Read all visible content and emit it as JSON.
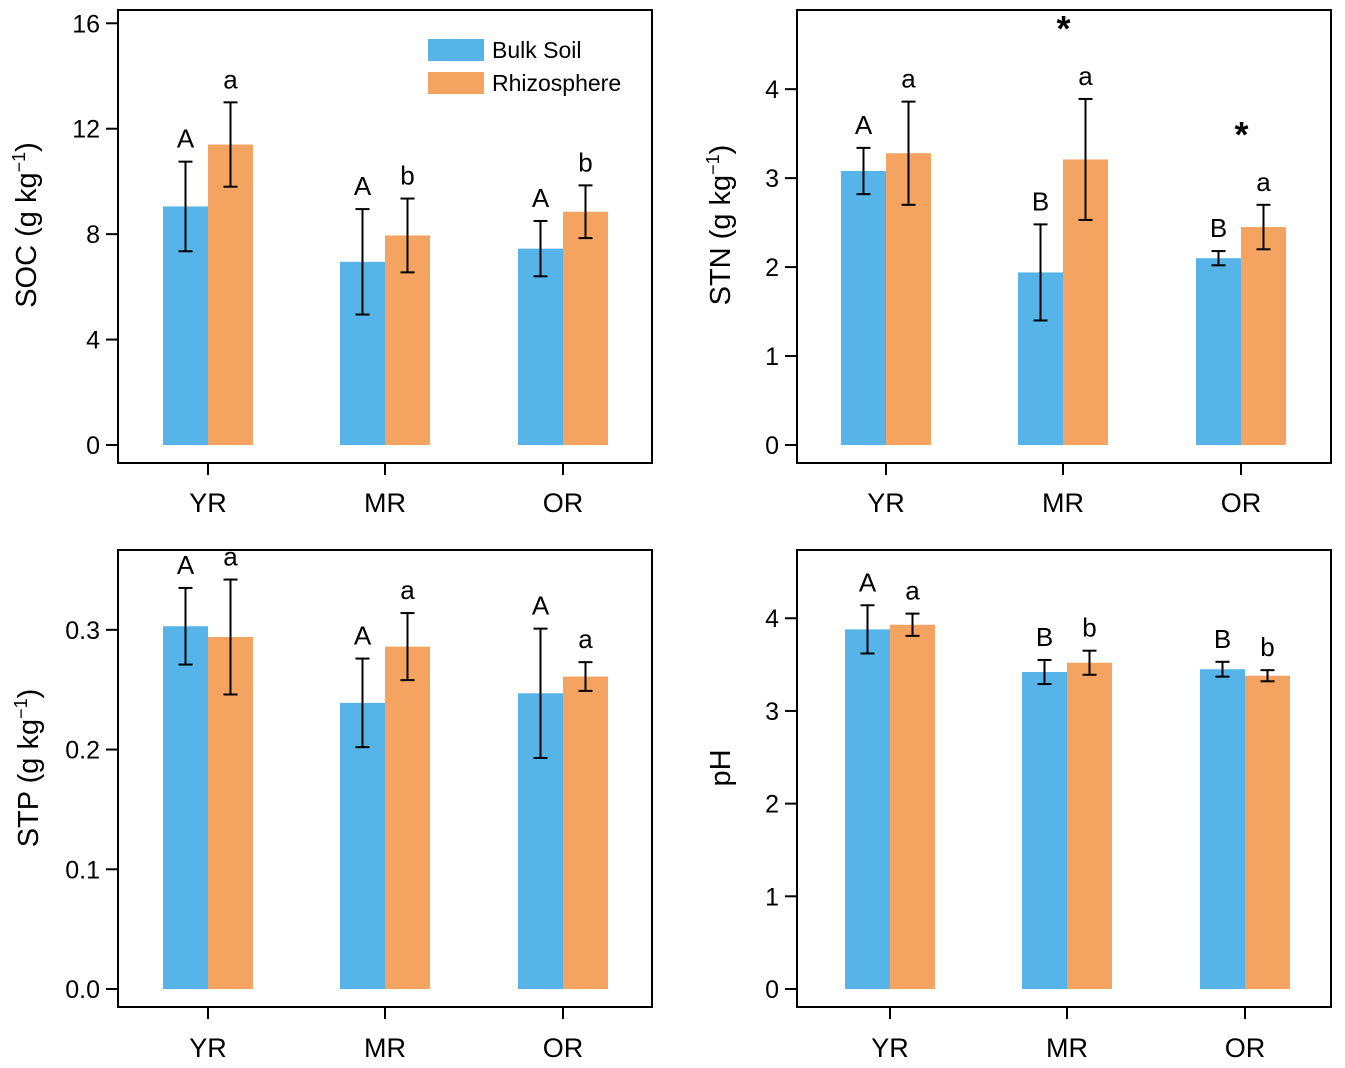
{
  "colors": {
    "bulk": "#56B4E9",
    "rhizo": "#F4A460",
    "axis": "#000000"
  },
  "legend": {
    "items": [
      "Bulk Soil",
      "Rhizosphere"
    ],
    "placement": "top-right of first panel"
  },
  "chart_data": [
    {
      "type": "bar",
      "id": "soc",
      "ylabel": "SOC (g kg",
      "ylabel_sup": "−1",
      "ylabel_close": ")",
      "categories": [
        "YR",
        "MR",
        "OR"
      ],
      "ylim": [
        0,
        16.2
      ],
      "yticks": [
        0,
        4,
        8,
        12,
        16
      ],
      "ytick_labels": [
        "0",
        "4",
        "8",
        "12",
        "16"
      ],
      "series": [
        {
          "name": "Bulk Soil",
          "values": [
            9.05,
            6.95,
            7.45
          ],
          "errors": [
            1.7,
            2.0,
            1.05
          ],
          "sig": [
            "A",
            "A",
            "A"
          ]
        },
        {
          "name": "Rhizosphere",
          "values": [
            11.4,
            7.95,
            8.85
          ],
          "errors": [
            1.6,
            1.4,
            1.0
          ],
          "sig": [
            "a",
            "b",
            "b"
          ]
        }
      ],
      "stars": []
    },
    {
      "type": "bar",
      "id": "stn",
      "ylabel": "STN (g kg",
      "ylabel_sup": "−1",
      "ylabel_close": ")",
      "categories": [
        "YR",
        "MR",
        "OR"
      ],
      "ylim": [
        0,
        4.8
      ],
      "yticks": [
        0,
        1,
        2,
        3,
        4
      ],
      "ytick_labels": [
        "0",
        "1",
        "2",
        "3",
        "4"
      ],
      "series": [
        {
          "name": "Bulk Soil",
          "values": [
            3.08,
            1.94,
            2.1
          ],
          "errors": [
            0.26,
            0.54,
            0.08
          ],
          "sig": [
            "A",
            "B",
            "B"
          ]
        },
        {
          "name": "Rhizosphere",
          "values": [
            3.28,
            3.21,
            2.45
          ],
          "errors": [
            0.58,
            0.68,
            0.25
          ],
          "sig": [
            "a",
            "a",
            "a"
          ]
        }
      ],
      "stars": [
        "",
        "*",
        "*"
      ]
    },
    {
      "type": "bar",
      "id": "stp",
      "ylabel": "STP (g kg",
      "ylabel_sup": "−1",
      "ylabel_close": ")",
      "categories": [
        "YR",
        "MR",
        "OR"
      ],
      "ylim": [
        0,
        0.36
      ],
      "yticks": [
        0,
        0.1,
        0.2,
        0.3
      ],
      "ytick_labels": [
        "0.0",
        "0.1",
        "0.2",
        "0.3"
      ],
      "series": [
        {
          "name": "Bulk Soil",
          "values": [
            0.303,
            0.239,
            0.247
          ],
          "errors": [
            0.032,
            0.037,
            0.054
          ],
          "sig": [
            "A",
            "A",
            "A"
          ]
        },
        {
          "name": "Rhizosphere",
          "values": [
            0.294,
            0.286,
            0.261
          ],
          "errors": [
            0.048,
            0.028,
            0.012
          ],
          "sig": [
            "a",
            "a",
            "a"
          ]
        }
      ],
      "stars": []
    },
    {
      "type": "bar",
      "id": "ph",
      "ylabel": "pH",
      "ylabel_sup": "",
      "ylabel_close": "",
      "categories": [
        "YR",
        "MR",
        "OR"
      ],
      "ylim": [
        0,
        4.65
      ],
      "yticks": [
        0,
        1,
        2,
        3,
        4
      ],
      "ytick_labels": [
        "0",
        "1",
        "2",
        "3",
        "4"
      ],
      "series": [
        {
          "name": "Bulk Soil",
          "values": [
            3.88,
            3.42,
            3.45
          ],
          "errors": [
            0.26,
            0.13,
            0.08
          ],
          "sig": [
            "A",
            "B",
            "B"
          ]
        },
        {
          "name": "Rhizosphere",
          "values": [
            3.93,
            3.52,
            3.38
          ],
          "errors": [
            0.12,
            0.13,
            0.06
          ],
          "sig": [
            "a",
            "b",
            "b"
          ]
        }
      ],
      "stars": []
    }
  ]
}
